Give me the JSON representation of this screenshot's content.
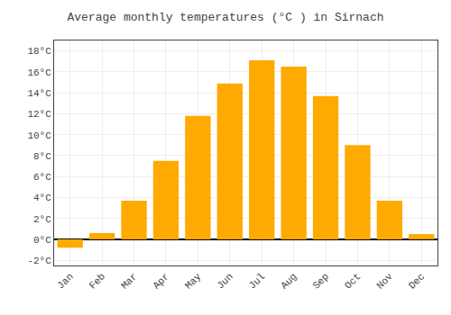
{
  "chart_data": {
    "type": "bar",
    "title": "Average monthly temperatures (°C ) in Sirnach",
    "categories": [
      "Jan",
      "Feb",
      "Mar",
      "Apr",
      "May",
      "Jun",
      "Jul",
      "Aug",
      "Sep",
      "Oct",
      "Nov",
      "Dec"
    ],
    "values": [
      -0.8,
      0.6,
      3.7,
      7.5,
      11.8,
      14.9,
      17.1,
      16.5,
      13.7,
      9.0,
      3.7,
      0.5
    ],
    "color": "#FFAA00",
    "ylim": [
      -2.5,
      19
    ],
    "yticks": [
      {
        "value": -2,
        "label": "-2°C"
      },
      {
        "value": 0,
        "label": "0°C"
      },
      {
        "value": 2,
        "label": "2°C"
      },
      {
        "value": 4,
        "label": "4°C"
      },
      {
        "value": 6,
        "label": "6°C"
      },
      {
        "value": 8,
        "label": "8°C"
      },
      {
        "value": 10,
        "label": "10°C"
      },
      {
        "value": 12,
        "label": "12°C"
      },
      {
        "value": 14,
        "label": "14°C"
      },
      {
        "value": 16,
        "label": "16°C"
      },
      {
        "value": 18,
        "label": "18°C"
      }
    ],
    "grid": true
  }
}
